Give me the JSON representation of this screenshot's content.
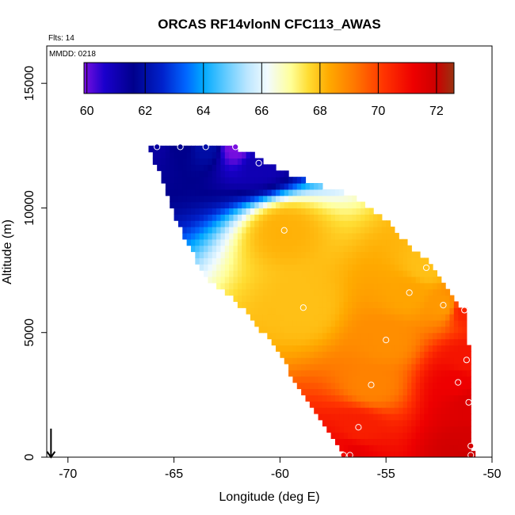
{
  "chart_data": {
    "type": "heatmap",
    "title": "ORCAS RF14vlonN CFC113_AWAS",
    "subtitle_flts": "Flts: 14",
    "subtitle_mmdd": "MMDD: 0218",
    "xlabel": "Longitude (deg E)",
    "ylabel": "Altitude (m)",
    "xlim": [
      -71,
      -50
    ],
    "ylim": [
      0,
      16500
    ],
    "xticks": [
      -70,
      -65,
      -60,
      -55,
      -50
    ],
    "xtick_labels": [
      "-70",
      "-65",
      "-60",
      "-55",
      "-50"
    ],
    "yticks": [
      0,
      5000,
      10000,
      15000
    ],
    "ytick_labels": [
      "0",
      "5000",
      "10000",
      "15000"
    ],
    "colorbar": {
      "range": [
        59.9,
        72.6
      ],
      "ticks": [
        60,
        62,
        64,
        66,
        68,
        70,
        72
      ],
      "tick_labels": [
        "60",
        "62",
        "64",
        "66",
        "68",
        "70",
        "72"
      ]
    },
    "color_scale": [
      {
        "v": 59.9,
        "c": "#7a0fe0"
      },
      {
        "v": 60.6,
        "c": "#1a00cc"
      },
      {
        "v": 61.6,
        "c": "#00008c"
      },
      {
        "v": 62.6,
        "c": "#0022cc"
      },
      {
        "v": 63.4,
        "c": "#0066ff"
      },
      {
        "v": 64.0,
        "c": "#00aaff"
      },
      {
        "v": 64.8,
        "c": "#66ccff"
      },
      {
        "v": 65.5,
        "c": "#bbe6ff"
      },
      {
        "v": 66.2,
        "c": "#f2fbff"
      },
      {
        "v": 67.0,
        "c": "#ffff99"
      },
      {
        "v": 67.6,
        "c": "#ffdd33"
      },
      {
        "v": 68.3,
        "c": "#ffaa00"
      },
      {
        "v": 69.2,
        "c": "#ff7700"
      },
      {
        "v": 70.2,
        "c": "#ff3300"
      },
      {
        "v": 71.2,
        "c": "#ee0000"
      },
      {
        "v": 72.0,
        "c": "#cc0000"
      },
      {
        "v": 72.6,
        "c": "#993311"
      }
    ],
    "curtain_polygon": [
      [
        -66.2,
        12450
      ],
      [
        -62.2,
        12450
      ],
      [
        -61.2,
        12100
      ],
      [
        -59.8,
        11450
      ],
      [
        -56.5,
        10450
      ],
      [
        -55.2,
        9700
      ],
      [
        -54.0,
        8600
      ],
      [
        -53.0,
        7800
      ],
      [
        -52.2,
        6900
      ],
      [
        -51.3,
        5900
      ],
      [
        -51.0,
        3950
      ],
      [
        -51.0,
        500
      ],
      [
        -50.8,
        0
      ],
      [
        -57.0,
        0
      ],
      [
        -57.3,
        400
      ],
      [
        -58.5,
        1900
      ],
      [
        -59.8,
        3800
      ],
      [
        -60.8,
        5000
      ],
      [
        -62.0,
        6200
      ],
      [
        -63.3,
        7000
      ],
      [
        -64.5,
        8700
      ],
      [
        -65.5,
        11000
      ]
    ],
    "samples": [
      {
        "lon": -65.8,
        "alt": 12450,
        "value": 61.3
      },
      {
        "lon": -64.7,
        "alt": 12450,
        "value": 61.6
      },
      {
        "lon": -63.5,
        "alt": 12450,
        "value": 62.0
      },
      {
        "lon": -62.1,
        "alt": 12450,
        "value": 59.9
      },
      {
        "lon": -61.0,
        "alt": 11800,
        "value": 61.0
      },
      {
        "lon": -59.8,
        "alt": 9100,
        "value": 68.2
      },
      {
        "lon": -53.1,
        "alt": 7600,
        "value": 68.0
      },
      {
        "lon": -53.9,
        "alt": 6600,
        "value": 68.4
      },
      {
        "lon": -52.3,
        "alt": 6100,
        "value": 68.6
      },
      {
        "lon": -51.3,
        "alt": 5900,
        "value": 70.5
      },
      {
        "lon": -58.9,
        "alt": 6000,
        "value": 68.0
      },
      {
        "lon": -55.0,
        "alt": 4700,
        "value": 68.8
      },
      {
        "lon": -51.2,
        "alt": 3900,
        "value": 70.8
      },
      {
        "lon": -51.6,
        "alt": 3000,
        "value": 71.2
      },
      {
        "lon": -55.7,
        "alt": 2900,
        "value": 69.0
      },
      {
        "lon": -51.1,
        "alt": 2200,
        "value": 71.6
      },
      {
        "lon": -56.3,
        "alt": 1200,
        "value": 70.6
      },
      {
        "lon": -51.0,
        "alt": 450,
        "value": 71.8
      },
      {
        "lon": -57.0,
        "alt": 80,
        "value": 71.0
      },
      {
        "lon": -56.7,
        "alt": 80,
        "value": 71.4
      },
      {
        "lon": -51.0,
        "alt": 80,
        "value": 72.0
      }
    ],
    "arrow_marker": {
      "lon": -70.8,
      "from_alt": 700,
      "to_alt": 0
    }
  }
}
